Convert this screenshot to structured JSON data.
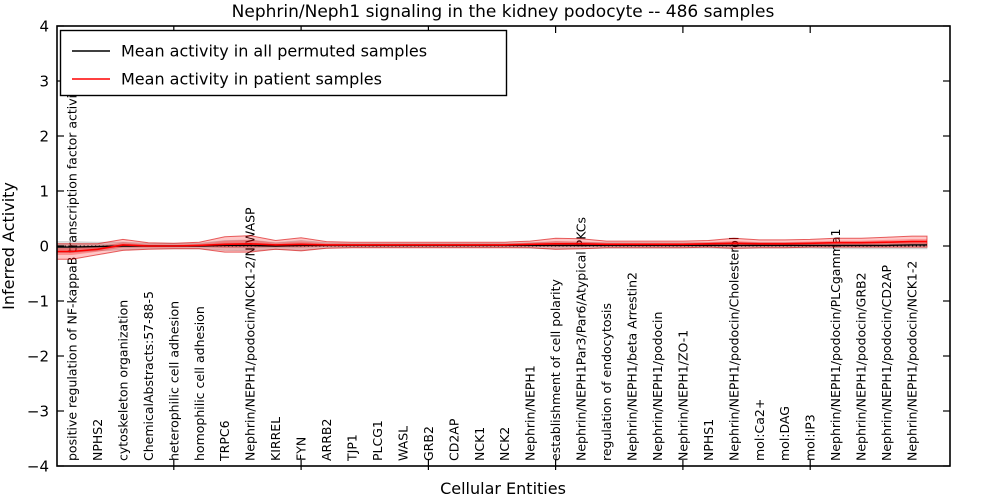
{
  "chart_data": {
    "type": "line",
    "title": "Nephrin/Neph1 signaling in the kidney podocyte -- 486 samples",
    "xlabel": "Cellular Entities",
    "ylabel": "Inferred Activity",
    "ylim": [
      -4,
      4
    ],
    "grid": false,
    "zero_line_style": "dotted",
    "legend": {
      "position": "upper left",
      "entries": [
        {
          "label": "Mean activity in all permuted samples",
          "color": "#000000"
        },
        {
          "label": "Mean activity in patient samples",
          "color": "#ff0000"
        }
      ]
    },
    "yticks": [
      {
        "v": 4,
        "label": "4"
      },
      {
        "v": 3,
        "label": "3"
      },
      {
        "v": 2,
        "label": "2"
      },
      {
        "v": 1,
        "label": "1"
      },
      {
        "v": 0,
        "label": "0"
      },
      {
        "v": -1,
        "label": "−1"
      },
      {
        "v": -2,
        "label": "−2"
      },
      {
        "v": -3,
        "label": "−3"
      },
      {
        "v": -4,
        "label": "−4"
      }
    ],
    "x_major_tick_every": 5,
    "categories": [
      "positive regulation of NF-kappaB transcription factor activity",
      "NPHS2",
      "cytoskeleton organization",
      "ChemicalAbstracts:57-88-5",
      "heterophilic cell adhesion",
      "homophilic cell adhesion",
      "TRPC6",
      "Nephrin/NEPH1/podocin/NCK1-2/N-WASP",
      "KIRREL",
      "FYN",
      "ARRB2",
      "TJP1",
      "PLCG1",
      "WASL",
      "GRB2",
      "CD2AP",
      "NCK1",
      "NCK2",
      "Nephrin/NEPH1",
      "establishment of cell polarity",
      "Nephrin/NEPH1Par3/Par6/Atypical PKCs",
      "regulation of endocytosis",
      "Nephrin/NEPH1/beta Arrestin2",
      "Nephrin/NEPH1/podocin",
      "Nephrin/NEPH1/ZO-1",
      "NPHS1",
      "Nephrin/NEPH1/podocin/Cholesterol",
      "mol:Ca2+",
      "mol:DAG",
      "mol:IP3",
      "Nephrin/NEPH1/podocin/PLCgamma1",
      "Nephrin/NEPH1/podocin/GRB2",
      "Nephrin/NEPH1/podocin/CD2AP",
      "Nephrin/NEPH1/podocin/NCK1-2"
    ],
    "series": [
      {
        "name": "Mean activity in all permuted samples",
        "color": "#000000",
        "band_color": "#000000",
        "values": [
          -0.02,
          -0.01,
          0.0,
          0.0,
          0.0,
          0.0,
          0.01,
          0.01,
          0.0,
          0.01,
          0.01,
          0.01,
          0.01,
          0.01,
          0.01,
          0.01,
          0.01,
          0.01,
          0.01,
          0.01,
          0.01,
          0.01,
          0.01,
          0.01,
          0.01,
          0.01,
          0.01,
          0.01,
          0.01,
          0.01,
          0.01,
          0.01,
          0.01,
          0.02
        ],
        "band_halfwidth": [
          0.1,
          0.08,
          0.07,
          0.05,
          0.05,
          0.05,
          0.09,
          0.1,
          0.06,
          0.09,
          0.05,
          0.04,
          0.04,
          0.04,
          0.04,
          0.04,
          0.04,
          0.04,
          0.05,
          0.07,
          0.06,
          0.05,
          0.05,
          0.05,
          0.05,
          0.05,
          0.06,
          0.05,
          0.05,
          0.05,
          0.06,
          0.06,
          0.06,
          0.07
        ]
      },
      {
        "name": "Mean activity in patient samples",
        "color": "#ff0000",
        "band_color": "#ff0000",
        "values": [
          -0.1,
          -0.06,
          0.02,
          0.0,
          0.0,
          0.01,
          0.03,
          0.04,
          0.02,
          0.03,
          0.02,
          0.02,
          0.02,
          0.02,
          0.02,
          0.02,
          0.02,
          0.02,
          0.03,
          0.04,
          0.04,
          0.03,
          0.03,
          0.03,
          0.03,
          0.04,
          0.05,
          0.04,
          0.04,
          0.05,
          0.06,
          0.06,
          0.07,
          0.08
        ],
        "band_halfwidth": [
          0.14,
          0.1,
          0.1,
          0.06,
          0.05,
          0.06,
          0.14,
          0.15,
          0.08,
          0.12,
          0.06,
          0.05,
          0.05,
          0.05,
          0.05,
          0.05,
          0.05,
          0.05,
          0.06,
          0.1,
          0.09,
          0.06,
          0.06,
          0.06,
          0.06,
          0.06,
          0.09,
          0.07,
          0.07,
          0.07,
          0.08,
          0.08,
          0.09,
          0.1
        ]
      }
    ]
  }
}
